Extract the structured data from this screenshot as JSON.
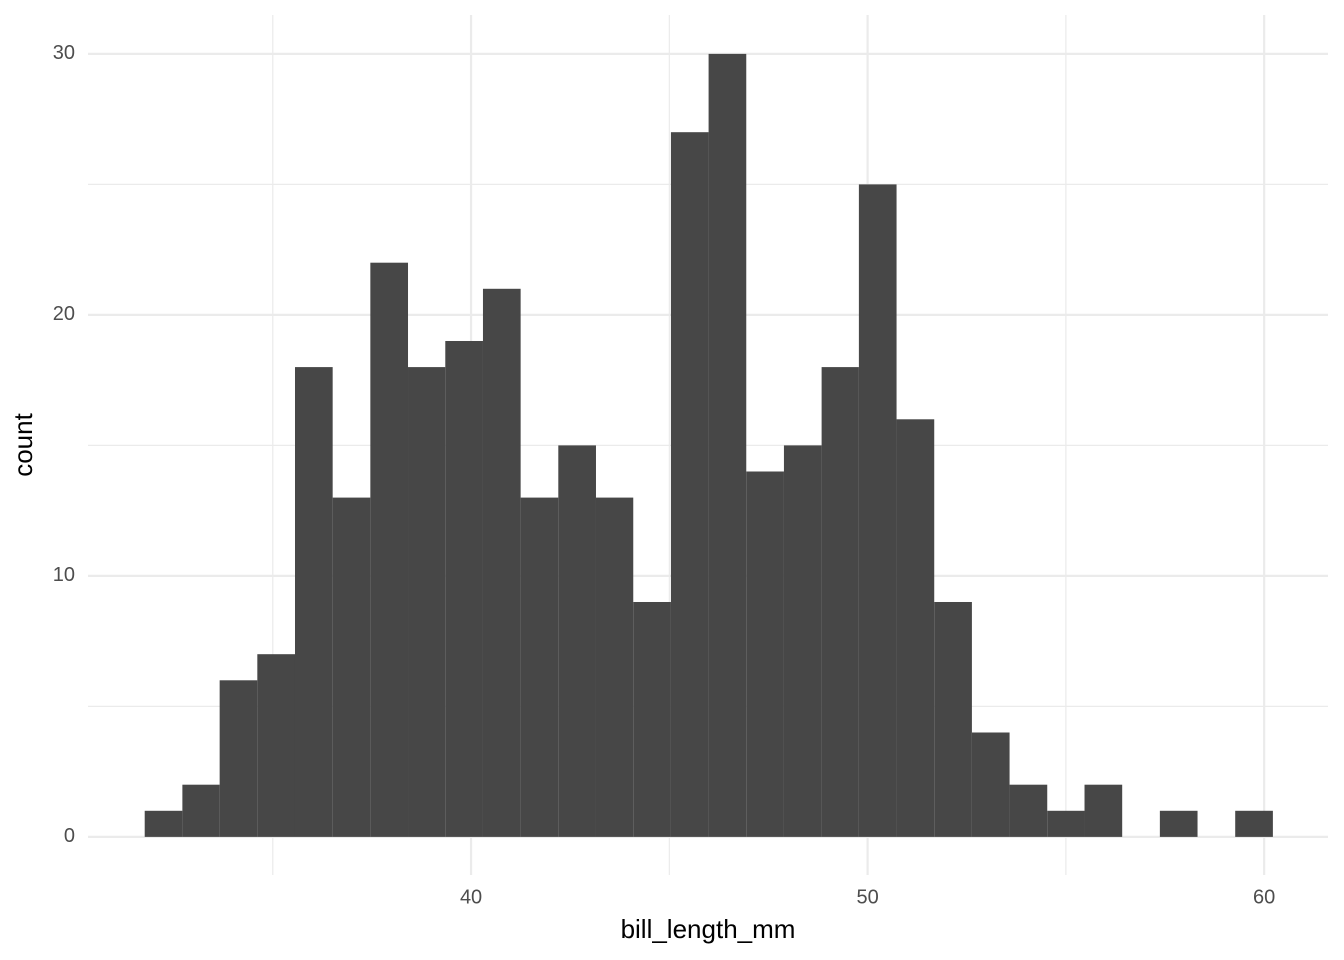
{
  "chart_data": {
    "type": "histogram",
    "x_label": "bill_length_mm",
    "y_label": "count",
    "bins": [
      31.77,
      32.72,
      33.66,
      34.61,
      35.56,
      36.51,
      37.46,
      38.41,
      39.35,
      40.3,
      41.25,
      42.2,
      43.15,
      44.09,
      45.04,
      45.99,
      46.94,
      47.89,
      48.84,
      49.78,
      50.73,
      51.68,
      52.63,
      53.58,
      54.53,
      55.47,
      56.42,
      57.37,
      58.32,
      59.27,
      60.22
    ],
    "values": [
      1,
      2,
      6,
      7,
      18,
      13,
      22,
      18,
      19,
      21,
      13,
      15,
      13,
      9,
      27,
      30,
      14,
      15,
      18,
      25,
      16,
      9,
      4,
      2,
      1,
      2,
      0,
      1,
      0,
      1
    ],
    "color": "#474747",
    "xlim": [
      30.34,
      61.61
    ],
    "ylim": [
      -1.46,
      31.49
    ],
    "xticks": [
      40,
      50,
      60
    ],
    "yticks": [
      0,
      10,
      20,
      30
    ],
    "x_minor_grid": [
      35,
      45,
      55
    ],
    "y_minor_grid": [
      5,
      15,
      25
    ],
    "grid": true
  }
}
